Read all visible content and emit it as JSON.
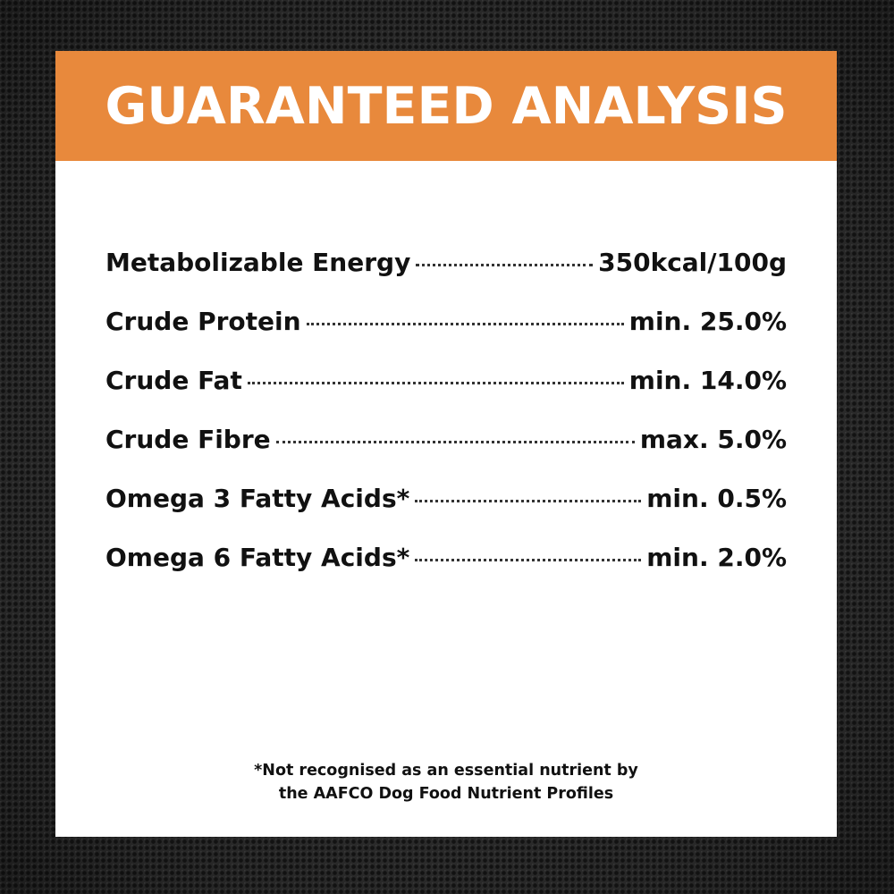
{
  "header": {
    "title": "GUARANTEED ANALYSIS"
  },
  "analysis": {
    "rows": [
      {
        "label": "Metabolizable Energy",
        "value": "350kcal/100g"
      },
      {
        "label": "Crude Protein",
        "value": "min. 25.0%"
      },
      {
        "label": "Crude Fat",
        "value": "min. 14.0%"
      },
      {
        "label": "Crude Fibre",
        "value": "max. 5.0%"
      },
      {
        "label": "Omega 3 Fatty Acids*",
        "value": "min. 0.5%"
      },
      {
        "label": "Omega 6 Fatty Acids*",
        "value": "min. 2.0%"
      }
    ]
  },
  "footnote": {
    "line1": "*Not recognised as an essential nutrient by",
    "line2": "the AAFCO Dog Food Nutrient Profiles"
  },
  "colors": {
    "banner": "#e8893c",
    "card": "#ffffff",
    "text": "#111111",
    "background": "#2e2e2e"
  }
}
